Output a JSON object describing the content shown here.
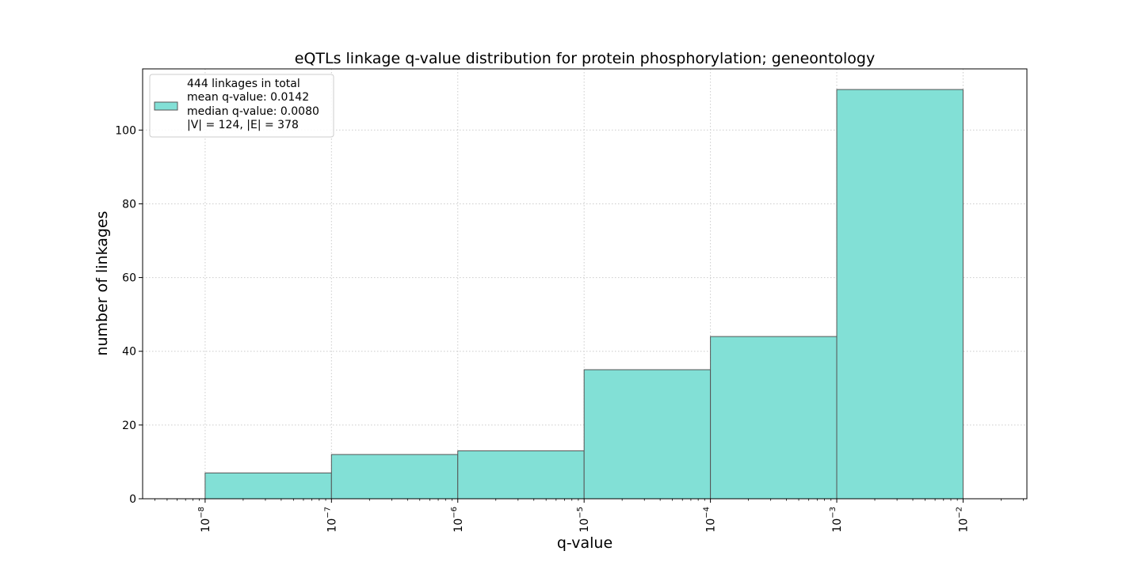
{
  "chart_data": {
    "type": "bar",
    "title": "eQTLs linkage q-value distribution for protein phosphorylation; geneontology",
    "xlabel": "q-value",
    "ylabel": "number of linkages",
    "x_scale": "log",
    "xlim": [
      3.2e-09,
      0.032
    ],
    "ylim": [
      0,
      116.6
    ],
    "bins": [
      {
        "left": 1e-08,
        "right": 1e-07,
        "value": 7
      },
      {
        "left": 1e-07,
        "right": 1e-06,
        "value": 12
      },
      {
        "left": 1e-06,
        "right": 1e-05,
        "value": 13
      },
      {
        "left": 1e-05,
        "right": 0.0001,
        "value": 35
      },
      {
        "left": 0.0001,
        "right": 0.001,
        "value": 44
      },
      {
        "left": 0.001,
        "right": 0.01,
        "value": 111
      }
    ],
    "xticks": [
      {
        "value": 1e-08,
        "base": "10",
        "exp": "−8"
      },
      {
        "value": 1e-07,
        "base": "10",
        "exp": "−7"
      },
      {
        "value": 1e-06,
        "base": "10",
        "exp": "−6"
      },
      {
        "value": 1e-05,
        "base": "10",
        "exp": "−5"
      },
      {
        "value": 0.0001,
        "base": "10",
        "exp": "−4"
      },
      {
        "value": 0.001,
        "base": "10",
        "exp": "−3"
      },
      {
        "value": 0.01,
        "base": "10",
        "exp": "−2"
      }
    ],
    "yticks": [
      {
        "value": 0,
        "label": "0"
      },
      {
        "value": 20,
        "label": "20"
      },
      {
        "value": 40,
        "label": "40"
      },
      {
        "value": 60,
        "label": "60"
      },
      {
        "value": 80,
        "label": "80"
      },
      {
        "value": 100,
        "label": "100"
      }
    ],
    "grid": true,
    "legend": {
      "placement": "top-left",
      "lines": [
        "444 linkages in total",
        "mean q-value: 0.0142",
        "median q-value: 0.0080",
        "|V| = 124, |E| = 378"
      ]
    },
    "colors": {
      "bar_fill": "#82e0d6",
      "bar_edge": "#555555",
      "grid": "#cccccc",
      "axis": "#000000"
    }
  }
}
